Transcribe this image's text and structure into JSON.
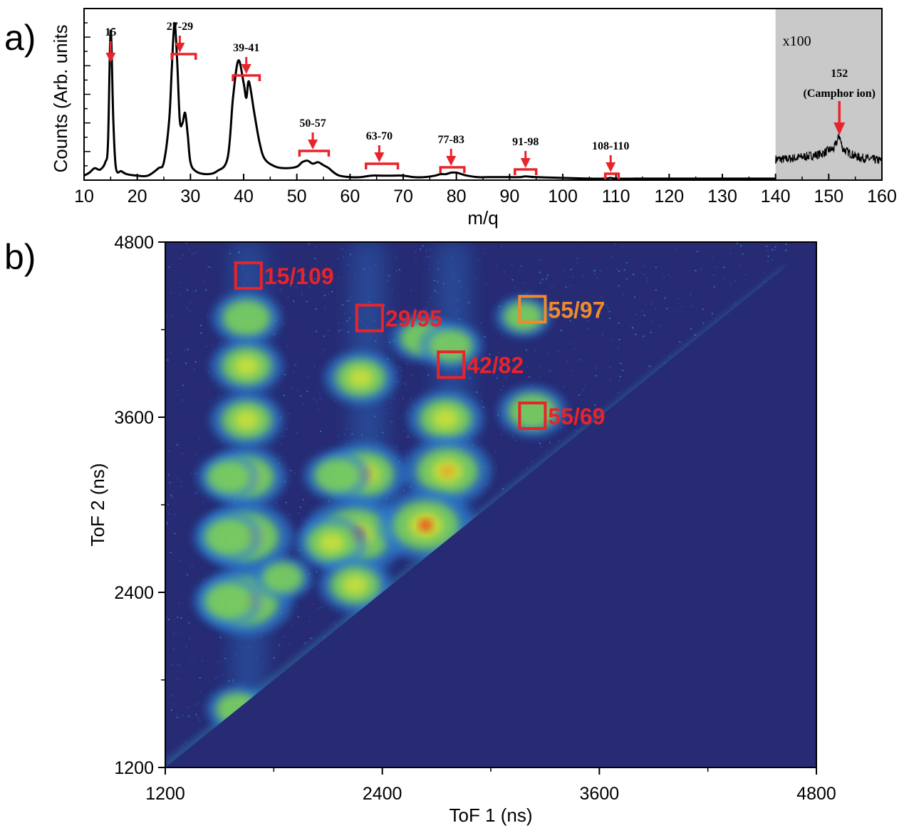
{
  "figure": {
    "panel_a_label": "a)",
    "panel_b_label": "b)"
  },
  "chart_data": [
    {
      "type": "line",
      "panel": "a)",
      "xlabel": "m/q",
      "ylabel": "Counts (Arb. units",
      "xlim": [
        10,
        160
      ],
      "x_ticks": [
        "10",
        "20",
        "30",
        "40",
        "50",
        "60",
        "70",
        "80",
        "90",
        "100",
        "110",
        "120",
        "130",
        "140",
        "150",
        "160"
      ],
      "grid": false,
      "series": [
        {
          "x": [
            10,
            11,
            12,
            13,
            14,
            14.5,
            15,
            15.5,
            16,
            17,
            18,
            20,
            22,
            24,
            25,
            26,
            26.5,
            27,
            27.5,
            28,
            28.5,
            29,
            29.5,
            30,
            31,
            33,
            35,
            37,
            38,
            39,
            40,
            40.5,
            41,
            42,
            43,
            44,
            46,
            48,
            50,
            51,
            52,
            53,
            54,
            55,
            56,
            57,
            58,
            60,
            62,
            64,
            66,
            68,
            70,
            72,
            74,
            76,
            77,
            78,
            79,
            80,
            81,
            82,
            84,
            86,
            88,
            90,
            92,
            93,
            95,
            100,
            105,
            108,
            109,
            110,
            115,
            120,
            125,
            130,
            135,
            140
          ],
          "y": [
            3,
            5,
            8,
            7,
            12,
            25,
            100,
            40,
            8,
            6,
            4,
            3,
            3,
            8,
            12,
            40,
            75,
            105,
            80,
            40,
            38,
            45,
            30,
            12,
            6,
            4,
            6,
            15,
            55,
            80,
            65,
            55,
            66,
            45,
            25,
            14,
            9,
            8,
            9,
            12,
            13,
            11,
            12,
            10,
            8,
            5,
            3,
            2,
            2,
            3,
            3,
            3,
            3,
            2,
            2,
            3,
            4,
            4,
            5,
            5,
            4,
            3,
            2,
            2,
            2,
            2,
            2,
            2.5,
            2,
            1.5,
            1,
            1,
            1.5,
            1,
            1,
            1,
            1,
            1,
            1,
            1
          ]
        }
      ],
      "inset": {
        "label": "x100",
        "xlim": [
          140,
          160
        ],
        "peak_label_mass": "152",
        "peak_label_name": "(Camphor ion)",
        "x": [
          140,
          142,
          144,
          146,
          148,
          149,
          150,
          151,
          152,
          152.5,
          153,
          154,
          155,
          156,
          158,
          160
        ],
        "y": [
          14,
          14,
          15,
          16,
          17,
          18,
          20,
          21,
          30,
          22,
          20,
          18,
          16,
          15,
          14,
          13
        ]
      },
      "annotations": [
        {
          "label": "15",
          "x": 15
        },
        {
          "label": "27-29",
          "x": 28,
          "range": [
            26.5,
            31
          ]
        },
        {
          "label": "39-41",
          "x": 40.5,
          "range": [
            38,
            43
          ]
        },
        {
          "label": "50-57",
          "x": 53,
          "range": [
            50.5,
            56
          ]
        },
        {
          "label": "63-70",
          "x": 65.5,
          "range": [
            63,
            69
          ]
        },
        {
          "label": "77-83",
          "x": 79,
          "range": [
            77,
            81.5
          ]
        },
        {
          "label": "91-98",
          "x": 93,
          "range": [
            91,
            95
          ]
        },
        {
          "label": "108-110",
          "x": 109,
          "range": [
            108,
            110.5
          ]
        }
      ],
      "colors": {
        "line": "#000000",
        "marker": "#e8232a",
        "inset_bg": "#c9c9c9"
      }
    },
    {
      "type": "heatmap",
      "panel": "b)",
      "xlabel": "ToF 1 (ns)",
      "ylabel": "ToF 2 (ns)",
      "xlim": [
        1200,
        4800
      ],
      "ylim": [
        1200,
        4800
      ],
      "x_ticks": [
        "1200",
        "2400",
        "3600",
        "4800"
      ],
      "y_ticks": [
        "1200",
        "2400",
        "3600",
        "4800"
      ],
      "colormap": [
        "#262b74",
        "#2a4aa8",
        "#2f7fd0",
        "#38b0c8",
        "#7ccf5a",
        "#c8e03a",
        "#f2e22a",
        "#f49a20",
        "#e0201a"
      ],
      "background": "#262b74",
      "streak_columns_tof1": [
        1660,
        2320,
        2790
      ],
      "islands": [
        {
          "tof1": 1650,
          "tof2": 4280,
          "level": 0.45
        },
        {
          "tof1": 1650,
          "tof2": 3950,
          "level": 0.5
        },
        {
          "tof1": 1650,
          "tof2": 3580,
          "level": 0.5
        },
        {
          "tof1": 1650,
          "tof2": 3190,
          "level": 0.6
        },
        {
          "tof1": 1650,
          "tof2": 2780,
          "level": 0.8
        },
        {
          "tof1": 1650,
          "tof2": 2340,
          "level": 0.8
        },
        {
          "tof1": 1550,
          "tof2": 2780,
          "level": 0.45
        },
        {
          "tof1": 1550,
          "tof2": 2340,
          "level": 0.45
        },
        {
          "tof1": 1550,
          "tof2": 3190,
          "level": 0.35
        },
        {
          "tof1": 2280,
          "tof2": 3870,
          "level": 0.5
        },
        {
          "tof1": 2300,
          "tof2": 3210,
          "level": 0.7
        },
        {
          "tof1": 2250,
          "tof2": 2790,
          "level": 0.95
        },
        {
          "tof1": 2120,
          "tof2": 2740,
          "level": 0.5
        },
        {
          "tof1": 2150,
          "tof2": 3200,
          "level": 0.4
        },
        {
          "tof1": 2250,
          "tof2": 2450,
          "level": 0.5
        },
        {
          "tof1": 2750,
          "tof2": 3590,
          "level": 0.55
        },
        {
          "tof1": 2760,
          "tof2": 3230,
          "level": 0.75
        },
        {
          "tof1": 2640,
          "tof2": 2860,
          "level": 0.85
        },
        {
          "tof1": 3230,
          "tof2": 3640,
          "level": 0.45
        },
        {
          "tof1": 2620,
          "tof2": 4140,
          "level": 0.35
        },
        {
          "tof1": 2780,
          "tof2": 4090,
          "level": 0.35
        },
        {
          "tof1": 3180,
          "tof2": 4290,
          "level": 0.25
        },
        {
          "tof1": 1850,
          "tof2": 2500,
          "level": 0.3
        },
        {
          "tof1": 1600,
          "tof2": 1600,
          "level": 0.35
        }
      ],
      "boxes": [
        {
          "label": "15/109",
          "tof1": 1660,
          "tof2": 4570,
          "color": "#e8232a"
        },
        {
          "label": "29/95",
          "tof1": 2330,
          "tof2": 4280,
          "color": "#e8232a"
        },
        {
          "label": "42/82",
          "tof1": 2780,
          "tof2": 3960,
          "color": "#e8232a"
        },
        {
          "label": "55/69",
          "tof1": 3230,
          "tof2": 3610,
          "color": "#e8232a"
        },
        {
          "label": "55/97",
          "tof1": 3230,
          "tof2": 4340,
          "color": "#f08a2a"
        }
      ]
    }
  ]
}
